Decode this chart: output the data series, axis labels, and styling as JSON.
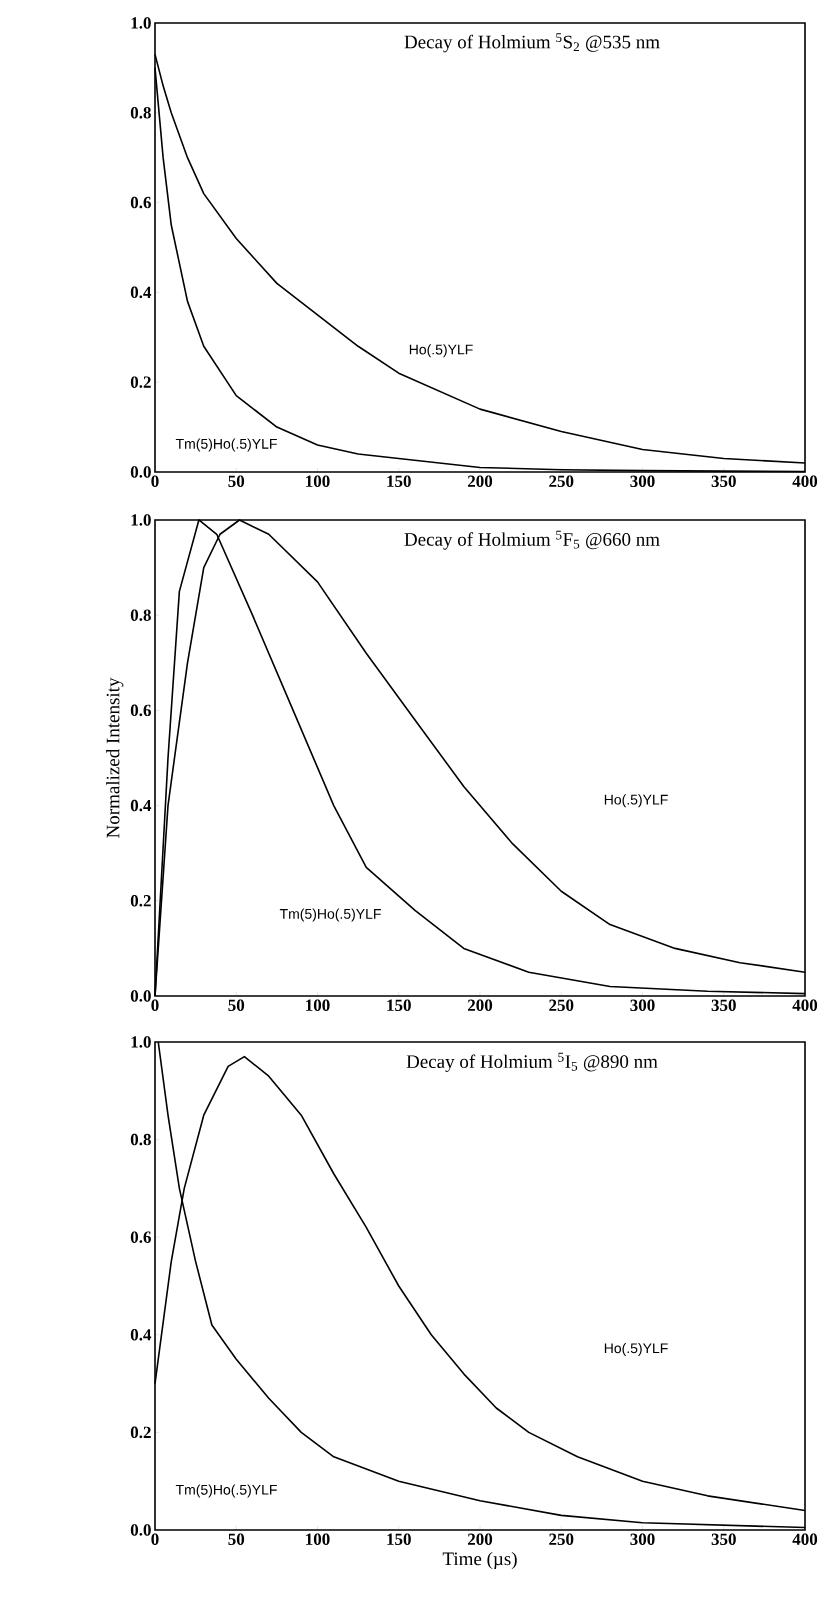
{
  "chart_data": [
    {
      "type": "line",
      "title": "Decay of Holmium $^{5}$S$_{2}$ @535 nm",
      "x": [
        0,
        5,
        10,
        20,
        30,
        50,
        75,
        100,
        125,
        150,
        200,
        250,
        300,
        350,
        400
      ],
      "xlim": [
        0,
        400
      ],
      "ylim": [
        0,
        1
      ],
      "xticks": [
        0,
        50,
        100,
        150,
        200,
        250,
        300,
        350,
        400
      ],
      "yticks": [
        {
          "value": 0,
          "label": "0.0"
        },
        {
          "value": 0.2,
          "label": "0.2"
        },
        {
          "value": 0.4,
          "label": "0.4"
        },
        {
          "value": 0.6,
          "label": "0.6"
        },
        {
          "value": 0.8,
          "label": "0.8"
        },
        {
          "value": 1,
          "label": "1.0"
        }
      ],
      "series": [
        {
          "color": "#000000",
          "values": [
            0.93,
            0.86,
            0.8,
            0.7,
            0.62,
            0.52,
            0.42,
            0.35,
            0.28,
            0.22,
            0.14,
            0.09,
            0.05,
            0.03,
            0.02
          ]
        },
        {
          "color": "#000000",
          "values": [
            0.9,
            0.7,
            0.55,
            0.38,
            0.28,
            0.17,
            0.1,
            0.06,
            0.04,
            0.03,
            0.01,
            0.005,
            0.003,
            0.002,
            0.001
          ]
        }
      ],
      "annotations": [
        "Ho(.5)YLF",
        "Tm(5)Ho(.5)YLF"
      ]
    },
    {
      "type": "line",
      "title": "Decay of Holmium $^{5}$F$_{5}$  @660 nm",
      "ylabel": "Normalized Intensity",
      "xlim": [
        0,
        400
      ],
      "ylim": [
        0,
        1
      ],
      "xticks": [
        0,
        50,
        100,
        150,
        200,
        250,
        300,
        350,
        400
      ],
      "yticks": [
        {
          "value": 0,
          "label": "0.0"
        },
        {
          "value": 0.2,
          "label": "0.2"
        },
        {
          "value": 0.4,
          "label": "0.4"
        },
        {
          "value": 0.6,
          "label": "0.6"
        },
        {
          "value": 0.8,
          "label": "0.8"
        },
        {
          "value": 1,
          "label": "1.0"
        }
      ],
      "series": [
        {
          "color": "#000000",
          "x": [
            0,
            8,
            20,
            30,
            40,
            52,
            70,
            100,
            130,
            160,
            190,
            220,
            250,
            280,
            320,
            360,
            400
          ],
          "values": [
            0,
            0.4,
            0.7,
            0.9,
            0.97,
            1.0,
            0.97,
            0.87,
            0.72,
            0.58,
            0.44,
            0.32,
            0.22,
            0.15,
            0.1,
            0.07,
            0.05
          ]
        },
        {
          "color": "#000000",
          "x": [
            0,
            8,
            15,
            27,
            38,
            60,
            85,
            110,
            130,
            160,
            190,
            230,
            280,
            340,
            400
          ],
          "values": [
            0,
            0.5,
            0.85,
            1.0,
            0.97,
            0.8,
            0.6,
            0.4,
            0.27,
            0.18,
            0.1,
            0.05,
            0.02,
            0.01,
            0.005
          ]
        }
      ],
      "annotations": [
        "Ho(.5)YLF",
        "Tm(5)Ho(.5)YLF"
      ]
    },
    {
      "type": "line",
      "title": "Decay of Holmium $^{5}$I$_{5}$ @890 nm",
      "xlabel": "Time (µs)",
      "xlim": [
        0,
        400
      ],
      "ylim": [
        0,
        1
      ],
      "xticks": [
        0,
        50,
        100,
        150,
        200,
        250,
        300,
        350,
        400
      ],
      "yticks": [
        {
          "value": 0,
          "label": "0.0"
        },
        {
          "value": 0.2,
          "label": "0.2"
        },
        {
          "value": 0.4,
          "label": "0.4"
        },
        {
          "value": 0.6,
          "label": "0.6"
        },
        {
          "value": 0.8,
          "label": "0.8"
        },
        {
          "value": 1,
          "label": "1.0"
        }
      ],
      "series": [
        {
          "color": "#000000",
          "x": [
            0,
            10,
            18,
            30,
            45,
            55,
            70,
            90,
            110,
            130,
            150,
            170,
            190,
            210,
            230,
            260,
            300,
            340,
            400
          ],
          "values": [
            0.3,
            0.55,
            0.7,
            0.85,
            0.95,
            0.97,
            0.93,
            0.85,
            0.73,
            0.62,
            0.5,
            0.4,
            0.32,
            0.25,
            0.2,
            0.15,
            0.1,
            0.07,
            0.04
          ]
        },
        {
          "color": "#000000",
          "x": [
            2,
            8,
            15,
            25,
            35,
            50,
            70,
            90,
            110,
            150,
            200,
            250,
            300,
            400
          ],
          "values": [
            1.0,
            0.85,
            0.7,
            0.55,
            0.42,
            0.35,
            0.27,
            0.2,
            0.15,
            0.1,
            0.06,
            0.03,
            0.015,
            0.005
          ]
        }
      ],
      "annotations": [
        "Ho(.5)YLF",
        "Tm(5)Ho(.5)YLF"
      ]
    }
  ]
}
